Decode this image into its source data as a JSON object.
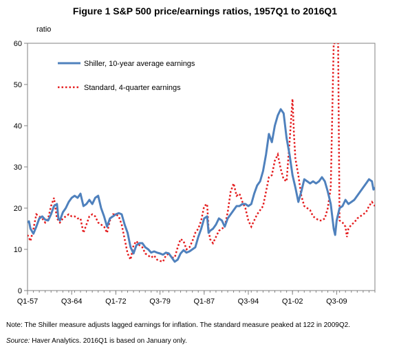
{
  "chart_data": {
    "type": "line",
    "title": "Figure 1 S&P 500 price/earnings ratios, 1957Q1 to 2016Q1",
    "ylabel": "ratio",
    "xlabel": "",
    "ylim": [
      0,
      60
    ],
    "yticks": [
      "0",
      "10",
      "20",
      "30",
      "40",
      "50",
      "60"
    ],
    "x_range": [
      1957.0,
      2016.0
    ],
    "xticks": [
      {
        "label": "Q1-57",
        "t": 1957.0
      },
      {
        "label": "Q3-64",
        "t": 1964.5
      },
      {
        "label": "Q1-72",
        "t": 1972.0
      },
      {
        "label": "Q3-79",
        "t": 1979.5
      },
      {
        "label": "Q1-87",
        "t": 1987.0
      },
      {
        "label": "Q3-94",
        "t": 1994.5
      },
      {
        "label": "Q1-02",
        "t": 2002.0
      },
      {
        "label": "Q3-09",
        "t": 2009.5
      }
    ],
    "grid": false,
    "legend_position": "top-left",
    "series": [
      {
        "name": "Shiller, 10-year average earnings",
        "color": "#4f81bd",
        "style": "solid",
        "points": [
          [
            1957.0,
            16.5
          ],
          [
            1957.25,
            16.8
          ],
          [
            1957.5,
            15.0
          ],
          [
            1958.0,
            13.8
          ],
          [
            1958.5,
            15.5
          ],
          [
            1959.0,
            17.5
          ],
          [
            1959.5,
            18.0
          ],
          [
            1960.0,
            17.2
          ],
          [
            1960.5,
            17.0
          ],
          [
            1961.0,
            18.5
          ],
          [
            1961.5,
            20.5
          ],
          [
            1962.0,
            21.0
          ],
          [
            1962.25,
            17.5
          ],
          [
            1962.5,
            17.0
          ],
          [
            1963.0,
            19.0
          ],
          [
            1963.5,
            20.0
          ],
          [
            1964.0,
            21.5
          ],
          [
            1964.5,
            22.5
          ],
          [
            1965.0,
            23.0
          ],
          [
            1965.5,
            22.5
          ],
          [
            1966.0,
            23.5
          ],
          [
            1966.5,
            20.5
          ],
          [
            1967.0,
            21.0
          ],
          [
            1967.5,
            22.0
          ],
          [
            1968.0,
            21.0
          ],
          [
            1968.5,
            22.5
          ],
          [
            1969.0,
            23.0
          ],
          [
            1969.5,
            20.0
          ],
          [
            1970.0,
            18.0
          ],
          [
            1970.5,
            15.5
          ],
          [
            1971.0,
            17.5
          ],
          [
            1971.5,
            18.0
          ],
          [
            1972.0,
            18.5
          ],
          [
            1972.5,
            18.8
          ],
          [
            1973.0,
            18.5
          ],
          [
            1973.5,
            16.0
          ],
          [
            1974.0,
            14.0
          ],
          [
            1974.5,
            10.5
          ],
          [
            1975.0,
            9.0
          ],
          [
            1975.5,
            11.0
          ],
          [
            1976.0,
            11.5
          ],
          [
            1976.5,
            11.5
          ],
          [
            1977.0,
            10.5
          ],
          [
            1977.5,
            10.0
          ],
          [
            1978.0,
            9.2
          ],
          [
            1978.5,
            9.5
          ],
          [
            1979.0,
            9.2
          ],
          [
            1979.5,
            9.0
          ],
          [
            1980.0,
            8.7
          ],
          [
            1980.5,
            9.2
          ],
          [
            1981.0,
            9.0
          ],
          [
            1981.5,
            8.0
          ],
          [
            1982.0,
            7.0
          ],
          [
            1982.5,
            7.5
          ],
          [
            1983.0,
            9.0
          ],
          [
            1983.5,
            9.8
          ],
          [
            1984.0,
            9.2
          ],
          [
            1984.5,
            9.5
          ],
          [
            1985.0,
            10.0
          ],
          [
            1985.5,
            10.5
          ],
          [
            1986.0,
            13.0
          ],
          [
            1986.5,
            15.0
          ],
          [
            1987.0,
            17.5
          ],
          [
            1987.5,
            18.0
          ],
          [
            1987.75,
            14.0
          ],
          [
            1988.0,
            14.5
          ],
          [
            1988.5,
            15.0
          ],
          [
            1989.0,
            16.0
          ],
          [
            1989.5,
            17.5
          ],
          [
            1990.0,
            17.0
          ],
          [
            1990.5,
            15.5
          ],
          [
            1991.0,
            17.5
          ],
          [
            1991.5,
            18.5
          ],
          [
            1992.0,
            19.5
          ],
          [
            1992.5,
            20.5
          ],
          [
            1993.0,
            20.5
          ],
          [
            1993.5,
            21.0
          ],
          [
            1994.0,
            21.0
          ],
          [
            1994.5,
            20.5
          ],
          [
            1995.0,
            21.0
          ],
          [
            1995.5,
            23.5
          ],
          [
            1996.0,
            25.5
          ],
          [
            1996.5,
            26.5
          ],
          [
            1997.0,
            29.0
          ],
          [
            1997.5,
            33.0
          ],
          [
            1998.0,
            38.0
          ],
          [
            1998.5,
            36.0
          ],
          [
            1999.0,
            40.0
          ],
          [
            1999.5,
            42.5
          ],
          [
            2000.0,
            44.0
          ],
          [
            2000.5,
            43.0
          ],
          [
            2001.0,
            37.0
          ],
          [
            2001.5,
            33.0
          ],
          [
            2002.0,
            28.0
          ],
          [
            2002.5,
            25.0
          ],
          [
            2003.0,
            21.5
          ],
          [
            2003.5,
            24.0
          ],
          [
            2004.0,
            27.0
          ],
          [
            2004.5,
            26.5
          ],
          [
            2005.0,
            26.0
          ],
          [
            2005.5,
            26.5
          ],
          [
            2006.0,
            26.0
          ],
          [
            2006.5,
            26.5
          ],
          [
            2007.0,
            27.5
          ],
          [
            2007.5,
            26.5
          ],
          [
            2008.0,
            24.0
          ],
          [
            2008.5,
            21.0
          ],
          [
            2009.0,
            15.0
          ],
          [
            2009.25,
            13.5
          ],
          [
            2009.5,
            17.0
          ],
          [
            2010.0,
            20.0
          ],
          [
            2010.5,
            20.5
          ],
          [
            2011.0,
            22.0
          ],
          [
            2011.5,
            21.0
          ],
          [
            2012.0,
            21.5
          ],
          [
            2012.5,
            22.0
          ],
          [
            2013.0,
            23.0
          ],
          [
            2013.5,
            24.0
          ],
          [
            2014.0,
            25.0
          ],
          [
            2014.5,
            26.0
          ],
          [
            2015.0,
            27.0
          ],
          [
            2015.5,
            26.5
          ],
          [
            2015.75,
            24.5
          ],
          [
            2016.0,
            25.0
          ]
        ]
      },
      {
        "name": "Standard, 4-quarter earnings",
        "color": "#e41a1c",
        "style": "dotted",
        "points": [
          [
            1957.0,
            13.5
          ],
          [
            1957.5,
            12.0
          ],
          [
            1958.0,
            15.0
          ],
          [
            1958.5,
            18.5
          ],
          [
            1959.0,
            18.0
          ],
          [
            1959.5,
            17.5
          ],
          [
            1960.0,
            16.5
          ],
          [
            1960.5,
            17.5
          ],
          [
            1961.0,
            20.5
          ],
          [
            1961.5,
            22.5
          ],
          [
            1962.0,
            17.5
          ],
          [
            1962.5,
            16.5
          ],
          [
            1963.0,
            17.5
          ],
          [
            1963.5,
            18.0
          ],
          [
            1964.0,
            18.5
          ],
          [
            1964.5,
            18.0
          ],
          [
            1965.0,
            18.0
          ],
          [
            1965.5,
            17.5
          ],
          [
            1966.0,
            17.5
          ],
          [
            1966.5,
            14.0
          ],
          [
            1967.0,
            16.0
          ],
          [
            1967.5,
            18.0
          ],
          [
            1968.0,
            18.5
          ],
          [
            1968.5,
            18.0
          ],
          [
            1969.0,
            16.5
          ],
          [
            1969.5,
            16.0
          ],
          [
            1970.0,
            15.5
          ],
          [
            1970.5,
            14.0
          ],
          [
            1971.0,
            17.0
          ],
          [
            1971.5,
            18.5
          ],
          [
            1972.0,
            18.5
          ],
          [
            1972.5,
            18.0
          ],
          [
            1973.0,
            16.0
          ],
          [
            1973.5,
            12.5
          ],
          [
            1974.0,
            9.0
          ],
          [
            1974.5,
            7.5
          ],
          [
            1975.0,
            11.0
          ],
          [
            1975.5,
            12.0
          ],
          [
            1976.0,
            11.0
          ],
          [
            1976.5,
            10.5
          ],
          [
            1977.0,
            9.0
          ],
          [
            1977.5,
            8.5
          ],
          [
            1978.0,
            8.0
          ],
          [
            1978.5,
            8.5
          ],
          [
            1979.0,
            7.5
          ],
          [
            1979.5,
            7.2
          ],
          [
            1980.0,
            7.0
          ],
          [
            1980.5,
            8.5
          ],
          [
            1981.0,
            9.0
          ],
          [
            1981.5,
            8.0
          ],
          [
            1982.0,
            8.0
          ],
          [
            1982.5,
            10.5
          ],
          [
            1983.0,
            12.5
          ],
          [
            1983.5,
            12.0
          ],
          [
            1984.0,
            10.0
          ],
          [
            1984.5,
            10.5
          ],
          [
            1985.0,
            12.0
          ],
          [
            1985.5,
            14.0
          ],
          [
            1986.0,
            15.0
          ],
          [
            1986.5,
            17.0
          ],
          [
            1987.0,
            20.5
          ],
          [
            1987.5,
            21.0
          ],
          [
            1987.75,
            15.0
          ],
          [
            1988.0,
            12.5
          ],
          [
            1988.5,
            11.5
          ],
          [
            1989.0,
            13.0
          ],
          [
            1989.5,
            14.5
          ],
          [
            1990.0,
            15.0
          ],
          [
            1990.5,
            15.5
          ],
          [
            1991.0,
            19.0
          ],
          [
            1991.5,
            24.0
          ],
          [
            1992.0,
            26.0
          ],
          [
            1992.5,
            23.0
          ],
          [
            1993.0,
            23.5
          ],
          [
            1993.5,
            21.5
          ],
          [
            1994.0,
            20.0
          ],
          [
            1994.5,
            17.0
          ],
          [
            1995.0,
            15.5
          ],
          [
            1995.5,
            17.0
          ],
          [
            1996.0,
            18.5
          ],
          [
            1996.5,
            19.5
          ],
          [
            1997.0,
            20.5
          ],
          [
            1997.5,
            24.0
          ],
          [
            1998.0,
            27.5
          ],
          [
            1998.5,
            28.0
          ],
          [
            1999.0,
            31.5
          ],
          [
            1999.5,
            33.0
          ],
          [
            2000.0,
            29.5
          ],
          [
            2000.5,
            27.0
          ],
          [
            2001.0,
            26.5
          ],
          [
            2001.5,
            36.0
          ],
          [
            2002.0,
            46.5
          ],
          [
            2002.25,
            38.0
          ],
          [
            2002.5,
            32.0
          ],
          [
            2003.0,
            28.0
          ],
          [
            2003.5,
            23.0
          ],
          [
            2004.0,
            20.5
          ],
          [
            2004.5,
            20.0
          ],
          [
            2005.0,
            19.5
          ],
          [
            2005.5,
            18.0
          ],
          [
            2006.0,
            17.5
          ],
          [
            2006.5,
            17.0
          ],
          [
            2007.0,
            17.0
          ],
          [
            2007.5,
            17.5
          ],
          [
            2008.0,
            20.0
          ],
          [
            2008.5,
            25.0
          ],
          [
            2009.0,
            60.0
          ],
          [
            2009.25,
            60.0
          ],
          [
            2009.5,
            60.0
          ],
          [
            2009.75,
            60.0
          ],
          [
            2010.0,
            17.0
          ],
          [
            2010.5,
            16.5
          ],
          [
            2011.0,
            15.5
          ],
          [
            2011.25,
            13.0
          ],
          [
            2011.5,
            15.0
          ],
          [
            2012.0,
            16.0
          ],
          [
            2012.5,
            16.5
          ],
          [
            2013.0,
            17.5
          ],
          [
            2013.5,
            18.0
          ],
          [
            2014.0,
            18.5
          ],
          [
            2014.5,
            19.0
          ],
          [
            2015.0,
            20.5
          ],
          [
            2015.5,
            21.5
          ],
          [
            2016.0,
            20.5
          ]
        ]
      }
    ]
  },
  "notes": {
    "note1": "Note: The Shiller measure adjusts lagged earnings for inflation. The standard measure peaked at 122 in 2009Q2.",
    "source_label": "Source:",
    "source_text": " Haver Analytics. 2016Q1 is based on January only."
  }
}
